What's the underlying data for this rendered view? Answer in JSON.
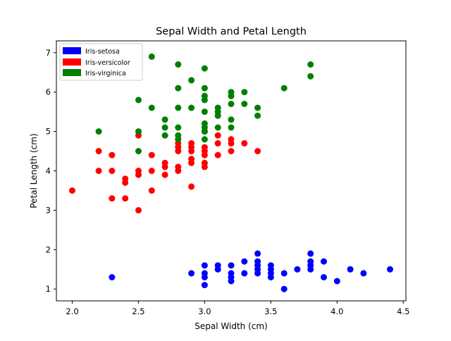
{
  "chart_data": {
    "type": "scatter",
    "title": "Sepal Width and Petal Length",
    "xlabel": "Sepal Width (cm)",
    "ylabel": "Petal Length (cm)",
    "xlim": [
      1.88,
      4.52
    ],
    "ylim": [
      0.7,
      7.3
    ],
    "xticks": [
      2.0,
      2.5,
      3.0,
      3.5,
      4.0,
      4.5
    ],
    "xtick_labels": [
      "2.0",
      "2.5",
      "3.0",
      "3.5",
      "4.0",
      "4.5"
    ],
    "yticks": [
      1,
      2,
      3,
      4,
      5,
      6,
      7
    ],
    "ytick_labels": [
      "1",
      "2",
      "3",
      "4",
      "5",
      "6",
      "7"
    ],
    "grid": false,
    "legend_position": "top-left",
    "series": [
      {
        "name": "Iris-setosa",
        "color": "#0000ff",
        "points": [
          [
            2.3,
            1.3
          ],
          [
            2.9,
            1.4
          ],
          [
            3.0,
            1.1
          ],
          [
            3.0,
            1.3
          ],
          [
            3.0,
            1.4
          ],
          [
            3.0,
            1.6
          ],
          [
            3.1,
            1.5
          ],
          [
            3.1,
            1.6
          ],
          [
            3.2,
            1.2
          ],
          [
            3.2,
            1.3
          ],
          [
            3.2,
            1.4
          ],
          [
            3.2,
            1.6
          ],
          [
            3.3,
            1.4
          ],
          [
            3.3,
            1.7
          ],
          [
            3.4,
            1.4
          ],
          [
            3.4,
            1.5
          ],
          [
            3.4,
            1.6
          ],
          [
            3.4,
            1.7
          ],
          [
            3.4,
            1.9
          ],
          [
            3.5,
            1.3
          ],
          [
            3.5,
            1.4
          ],
          [
            3.5,
            1.5
          ],
          [
            3.5,
            1.6
          ],
          [
            3.6,
            1.0
          ],
          [
            3.6,
            1.4
          ],
          [
            3.7,
            1.5
          ],
          [
            3.8,
            1.5
          ],
          [
            3.8,
            1.6
          ],
          [
            3.8,
            1.7
          ],
          [
            3.8,
            1.9
          ],
          [
            3.9,
            1.3
          ],
          [
            3.9,
            1.7
          ],
          [
            4.0,
            1.2
          ],
          [
            4.1,
            1.5
          ],
          [
            4.2,
            1.4
          ],
          [
            4.4,
            1.5
          ]
        ]
      },
      {
        "name": "Iris-versicolor",
        "color": "#ff0000",
        "points": [
          [
            2.0,
            3.5
          ],
          [
            2.2,
            4.0
          ],
          [
            2.2,
            4.5
          ],
          [
            2.3,
            3.3
          ],
          [
            2.3,
            4.0
          ],
          [
            2.3,
            4.4
          ],
          [
            2.4,
            3.3
          ],
          [
            2.4,
            3.7
          ],
          [
            2.4,
            3.8
          ],
          [
            2.5,
            3.0
          ],
          [
            2.5,
            3.9
          ],
          [
            2.5,
            4.0
          ],
          [
            2.5,
            4.9
          ],
          [
            2.6,
            3.5
          ],
          [
            2.6,
            4.0
          ],
          [
            2.6,
            4.4
          ],
          [
            2.7,
            3.9
          ],
          [
            2.7,
            4.1
          ],
          [
            2.7,
            4.2
          ],
          [
            2.8,
            4.0
          ],
          [
            2.8,
            4.1
          ],
          [
            2.8,
            4.5
          ],
          [
            2.8,
            4.6
          ],
          [
            2.8,
            4.7
          ],
          [
            2.9,
            3.6
          ],
          [
            2.9,
            4.2
          ],
          [
            2.9,
            4.3
          ],
          [
            2.9,
            4.5
          ],
          [
            2.9,
            4.6
          ],
          [
            2.9,
            4.7
          ],
          [
            3.0,
            4.1
          ],
          [
            3.0,
            4.2
          ],
          [
            3.0,
            4.4
          ],
          [
            3.0,
            4.5
          ],
          [
            3.0,
            4.6
          ],
          [
            3.0,
            5.0
          ],
          [
            3.1,
            4.4
          ],
          [
            3.1,
            4.7
          ],
          [
            3.1,
            4.9
          ],
          [
            3.2,
            4.5
          ],
          [
            3.2,
            4.7
          ],
          [
            3.2,
            4.8
          ],
          [
            3.3,
            4.7
          ],
          [
            3.4,
            4.5
          ]
        ]
      },
      {
        "name": "Iris-virginica",
        "color": "#008000",
        "points": [
          [
            2.2,
            5.0
          ],
          [
            2.5,
            4.5
          ],
          [
            2.5,
            5.0
          ],
          [
            2.5,
            5.8
          ],
          [
            2.6,
            5.6
          ],
          [
            2.6,
            6.9
          ],
          [
            2.7,
            4.9
          ],
          [
            2.7,
            5.1
          ],
          [
            2.7,
            5.3
          ],
          [
            2.8,
            4.8
          ],
          [
            2.8,
            4.9
          ],
          [
            2.8,
            5.1
          ],
          [
            2.8,
            5.6
          ],
          [
            2.8,
            6.1
          ],
          [
            2.8,
            6.7
          ],
          [
            2.9,
            5.6
          ],
          [
            2.9,
            6.3
          ],
          [
            3.0,
            4.8
          ],
          [
            3.0,
            5.0
          ],
          [
            3.0,
            5.1
          ],
          [
            3.0,
            5.2
          ],
          [
            3.0,
            5.5
          ],
          [
            3.0,
            5.8
          ],
          [
            3.0,
            5.9
          ],
          [
            3.0,
            6.1
          ],
          [
            3.0,
            6.6
          ],
          [
            3.1,
            5.1
          ],
          [
            3.1,
            5.4
          ],
          [
            3.1,
            5.5
          ],
          [
            3.1,
            5.6
          ],
          [
            3.2,
            5.1
          ],
          [
            3.2,
            5.3
          ],
          [
            3.2,
            5.7
          ],
          [
            3.2,
            5.9
          ],
          [
            3.2,
            6.0
          ],
          [
            3.3,
            5.7
          ],
          [
            3.3,
            6.0
          ],
          [
            3.4,
            5.4
          ],
          [
            3.4,
            5.6
          ],
          [
            3.6,
            6.1
          ],
          [
            3.8,
            6.4
          ],
          [
            3.8,
            6.7
          ]
        ]
      }
    ]
  }
}
